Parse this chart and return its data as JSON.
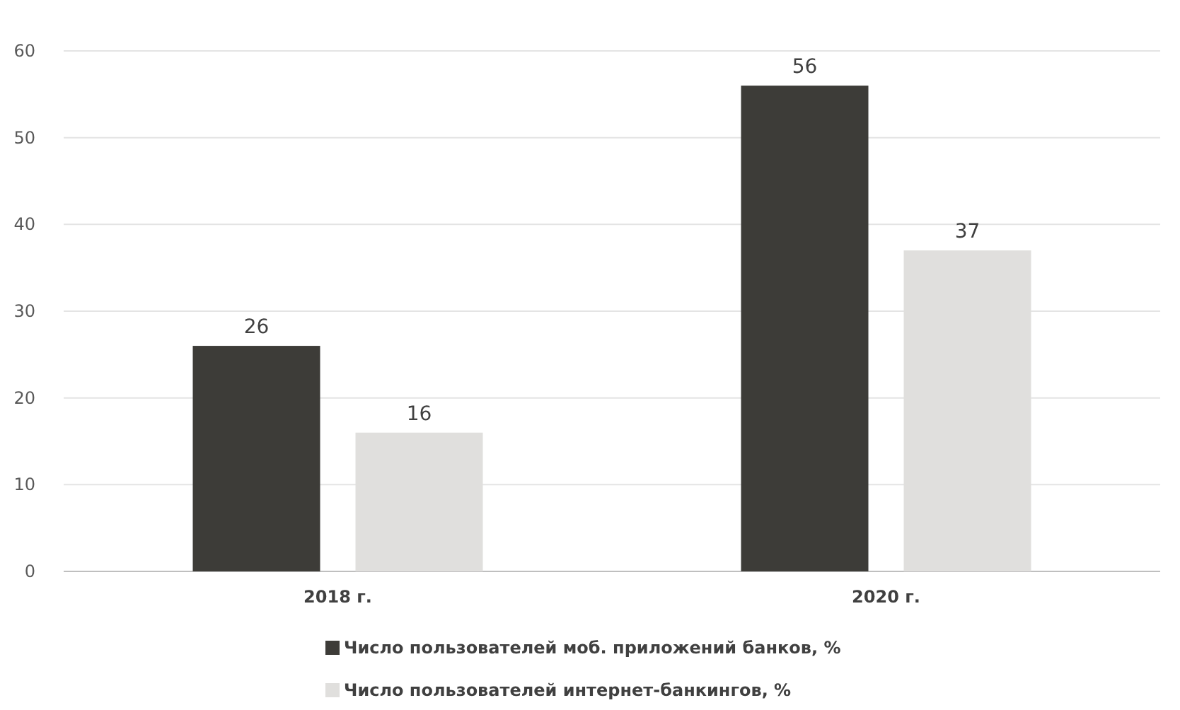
{
  "chart_data": {
    "type": "bar",
    "categories": [
      "2018 г.",
      "2020 г."
    ],
    "series": [
      {
        "name": "Число пользователей моб. приложений банков, %",
        "color": "#3d3c38",
        "values": [
          26,
          56
        ]
      },
      {
        "name": "Число пользователей интернет-банкингов, %",
        "color": "#e0dfdd",
        "values": [
          16,
          37
        ]
      }
    ],
    "ylim": [
      0,
      60
    ],
    "yticks": [
      0,
      10,
      20,
      30,
      40,
      50,
      60
    ],
    "grid": "y",
    "legend": "bottom",
    "data_labels": true
  }
}
